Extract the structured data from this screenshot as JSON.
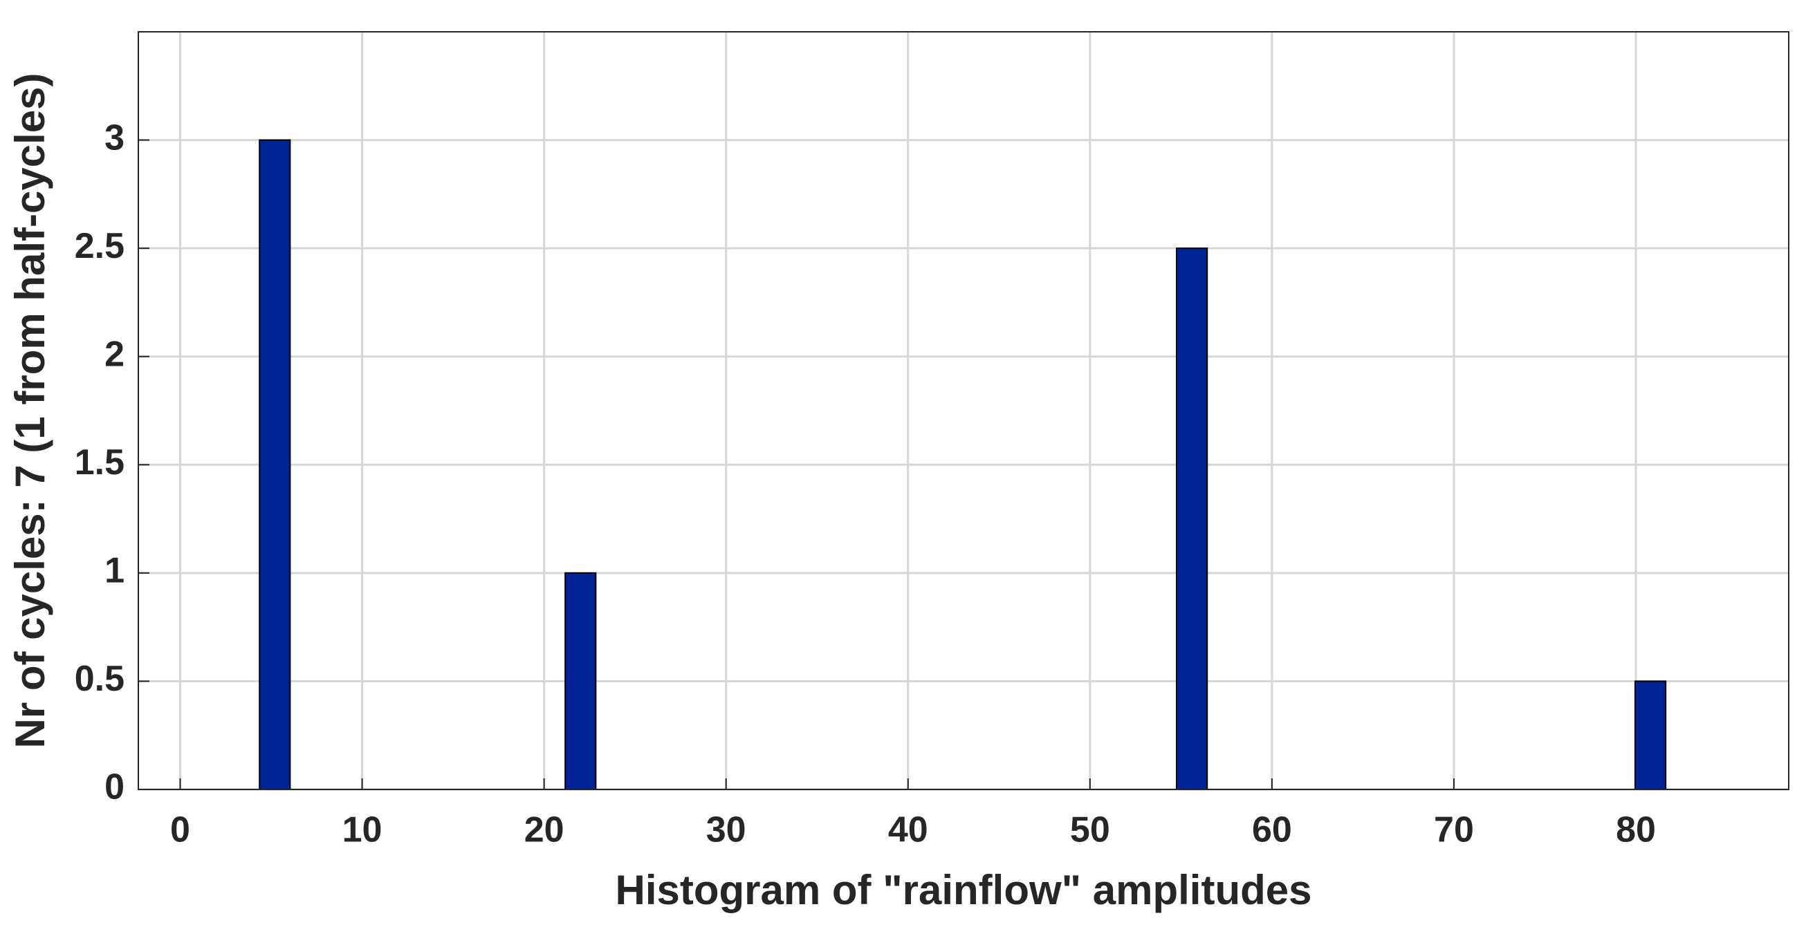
{
  "chart_data": {
    "type": "bar",
    "x_label": "Histogram of \"rainflow\" amplitudes",
    "y_label": "Nr of cycles: 7 (1 from half-cycles)",
    "x": [
      5.2,
      13.6,
      22,
      30.4,
      38.8,
      47.2,
      55.6,
      64,
      72.4,
      80.8
    ],
    "values": [
      3,
      0,
      1,
      0,
      0,
      0,
      2.5,
      0,
      0,
      0.5
    ],
    "color": "#002395",
    "xlim": [
      -2.3,
      88.4
    ],
    "xticks": [
      0,
      10,
      20,
      30,
      40,
      50,
      60,
      70,
      80
    ],
    "ylim": [
      0,
      3.5
    ],
    "yticks": [
      0,
      0.5,
      1,
      1.5,
      2,
      2.5,
      3
    ],
    "grid": true
  }
}
